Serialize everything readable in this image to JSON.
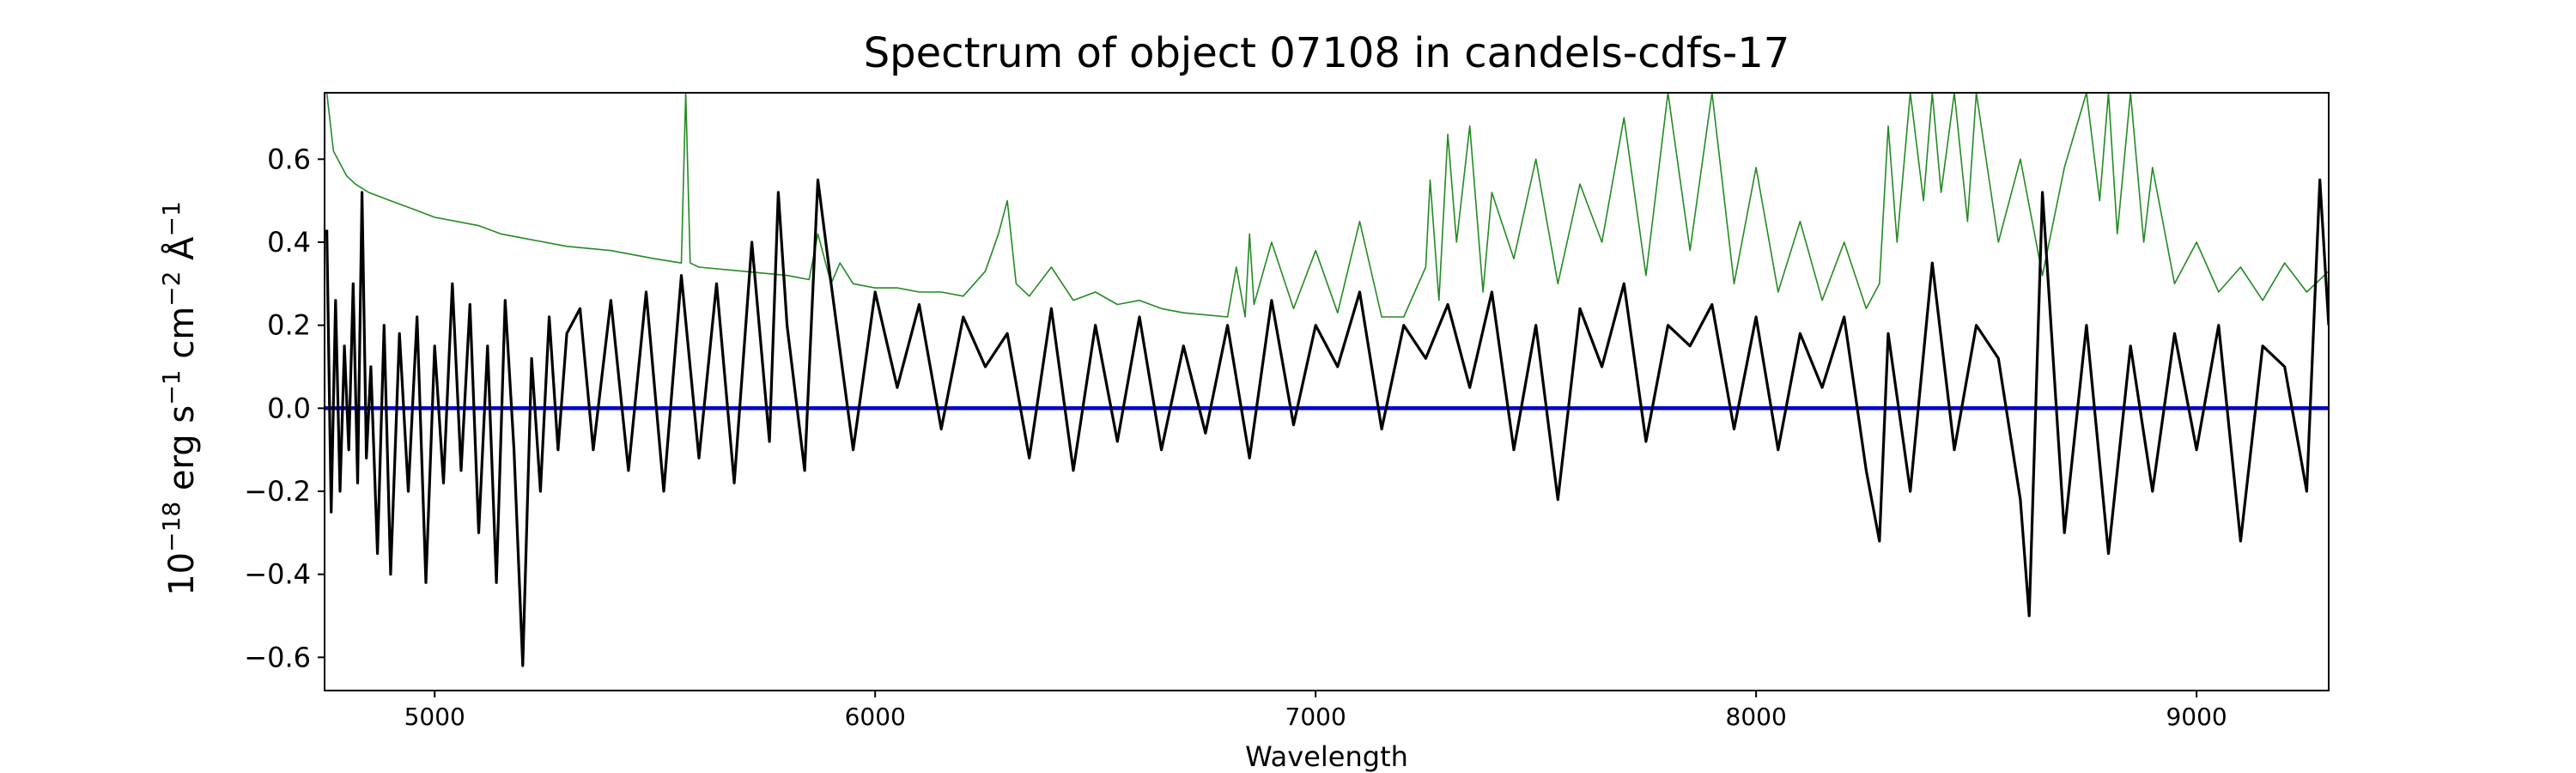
{
  "chart_data": {
    "type": "line",
    "title": "Spectrum of object 07108 in candels-cdfs-17",
    "xlabel": "Wavelength",
    "ylabel_parts": [
      "10",
      "−18",
      " erg s",
      "−1",
      " cm",
      "−2",
      " Å",
      "−1"
    ],
    "xlim": [
      4750,
      9300
    ],
    "ylim": [
      -0.68,
      0.76
    ],
    "x_ticks": [
      5000,
      6000,
      7000,
      8000,
      9000
    ],
    "x_tick_labels": [
      "5000",
      "6000",
      "7000",
      "8000",
      "9000"
    ],
    "y_ticks": [
      -0.6,
      -0.4,
      -0.2,
      0.0,
      0.2,
      0.4,
      0.6
    ],
    "y_tick_labels": [
      "−0.6",
      "−0.4",
      "−0.2",
      "0.0",
      "0.2",
      "0.4",
      "0.6"
    ],
    "grid": false,
    "series": [
      {
        "id": "noise",
        "color": "#228b22",
        "x": [
          4755,
          4770,
          4790,
          4800,
          4820,
          4850,
          4900,
          4950,
          5000,
          5100,
          5150,
          5200,
          5250,
          5300,
          5400,
          5500,
          5560,
          5570,
          5580,
          5600,
          5700,
          5800,
          5850,
          5870,
          5900,
          5920,
          5950,
          6000,
          6050,
          6100,
          6150,
          6200,
          6250,
          6280,
          6300,
          6320,
          6350,
          6400,
          6450,
          6500,
          6550,
          6600,
          6650,
          6700,
          6800,
          6820,
          6840,
          6850,
          6860,
          6900,
          6950,
          7000,
          7050,
          7100,
          7150,
          7200,
          7250,
          7260,
          7280,
          7300,
          7320,
          7350,
          7380,
          7400,
          7450,
          7500,
          7550,
          7600,
          7650,
          7700,
          7750,
          7800,
          7850,
          7900,
          7950,
          8000,
          8050,
          8100,
          8150,
          8200,
          8250,
          8280,
          8300,
          8320,
          8350,
          8380,
          8400,
          8420,
          8450,
          8480,
          8500,
          8550,
          8600,
          8650,
          8700,
          8750,
          8780,
          8800,
          8820,
          8850,
          8880,
          8900,
          8950,
          9000,
          9050,
          9100,
          9150,
          9200,
          9250,
          9300
        ],
        "y": [
          0.76,
          0.62,
          0.58,
          0.56,
          0.54,
          0.52,
          0.5,
          0.48,
          0.46,
          0.44,
          0.42,
          0.41,
          0.4,
          0.39,
          0.38,
          0.36,
          0.35,
          0.76,
          0.35,
          0.34,
          0.33,
          0.32,
          0.31,
          0.42,
          0.3,
          0.35,
          0.3,
          0.29,
          0.29,
          0.28,
          0.28,
          0.27,
          0.33,
          0.42,
          0.5,
          0.3,
          0.27,
          0.34,
          0.26,
          0.28,
          0.25,
          0.26,
          0.24,
          0.23,
          0.22,
          0.34,
          0.22,
          0.42,
          0.25,
          0.4,
          0.24,
          0.38,
          0.23,
          0.45,
          0.22,
          0.22,
          0.34,
          0.55,
          0.26,
          0.66,
          0.4,
          0.68,
          0.28,
          0.52,
          0.36,
          0.6,
          0.3,
          0.54,
          0.4,
          0.7,
          0.32,
          0.76,
          0.38,
          0.76,
          0.3,
          0.58,
          0.28,
          0.45,
          0.26,
          0.4,
          0.24,
          0.3,
          0.68,
          0.4,
          0.76,
          0.5,
          0.76,
          0.52,
          0.76,
          0.45,
          0.76,
          0.4,
          0.6,
          0.32,
          0.58,
          0.76,
          0.5,
          0.76,
          0.42,
          0.76,
          0.4,
          0.58,
          0.3,
          0.4,
          0.28,
          0.34,
          0.26,
          0.35,
          0.28,
          0.33
        ]
      },
      {
        "id": "model",
        "color": "#0000cc",
        "x": [
          4750,
          9300
        ],
        "y": [
          0.0,
          0.0
        ]
      },
      {
        "id": "flux",
        "color": "#000000",
        "x": [
          4755,
          4765,
          4775,
          4785,
          4795,
          4805,
          4815,
          4825,
          4835,
          4845,
          4855,
          4870,
          4885,
          4900,
          4920,
          4940,
          4960,
          4980,
          5000,
          5020,
          5040,
          5060,
          5080,
          5100,
          5120,
          5140,
          5160,
          5180,
          5200,
          5220,
          5240,
          5260,
          5280,
          5300,
          5330,
          5360,
          5400,
          5440,
          5480,
          5520,
          5560,
          5600,
          5640,
          5680,
          5720,
          5760,
          5780,
          5800,
          5840,
          5870,
          5900,
          5950,
          6000,
          6050,
          6100,
          6150,
          6200,
          6250,
          6300,
          6350,
          6400,
          6450,
          6500,
          6550,
          6600,
          6650,
          6700,
          6750,
          6800,
          6850,
          6900,
          6950,
          7000,
          7050,
          7100,
          7150,
          7200,
          7250,
          7300,
          7350,
          7400,
          7450,
          7500,
          7550,
          7600,
          7650,
          7700,
          7750,
          7800,
          7850,
          7900,
          7950,
          8000,
          8050,
          8100,
          8150,
          8200,
          8250,
          8280,
          8300,
          8350,
          8400,
          8450,
          8500,
          8550,
          8600,
          8620,
          8650,
          8700,
          8750,
          8800,
          8850,
          8900,
          8950,
          9000,
          9050,
          9100,
          9150,
          9200,
          9250,
          9280,
          9300
        ],
        "y": [
          0.43,
          -0.25,
          0.26,
          -0.2,
          0.15,
          -0.1,
          0.3,
          -0.18,
          0.52,
          -0.12,
          0.1,
          -0.35,
          0.2,
          -0.4,
          0.18,
          -0.2,
          0.22,
          -0.42,
          0.15,
          -0.18,
          0.3,
          -0.15,
          0.25,
          -0.3,
          0.15,
          -0.42,
          0.26,
          -0.1,
          -0.62,
          0.12,
          -0.2,
          0.22,
          -0.1,
          0.18,
          0.24,
          -0.1,
          0.26,
          -0.15,
          0.28,
          -0.2,
          0.32,
          -0.12,
          0.3,
          -0.18,
          0.4,
          -0.08,
          0.52,
          0.2,
          -0.15,
          0.55,
          0.3,
          -0.1,
          0.28,
          0.05,
          0.25,
          -0.05,
          0.22,
          0.1,
          0.18,
          -0.12,
          0.24,
          -0.15,
          0.2,
          -0.08,
          0.22,
          -0.1,
          0.15,
          -0.06,
          0.2,
          -0.12,
          0.26,
          -0.04,
          0.2,
          0.1,
          0.28,
          -0.05,
          0.2,
          0.12,
          0.25,
          0.05,
          0.28,
          -0.1,
          0.2,
          -0.22,
          0.24,
          0.1,
          0.3,
          -0.08,
          0.2,
          0.15,
          0.25,
          -0.05,
          0.22,
          -0.1,
          0.18,
          0.05,
          0.22,
          -0.15,
          -0.32,
          0.18,
          -0.2,
          0.35,
          -0.1,
          0.2,
          0.12,
          -0.22,
          -0.5,
          0.52,
          -0.3,
          0.2,
          -0.35,
          0.15,
          -0.2,
          0.18,
          -0.1,
          0.2,
          -0.32,
          0.15,
          0.1,
          -0.2,
          0.55,
          0.2
        ]
      }
    ]
  }
}
